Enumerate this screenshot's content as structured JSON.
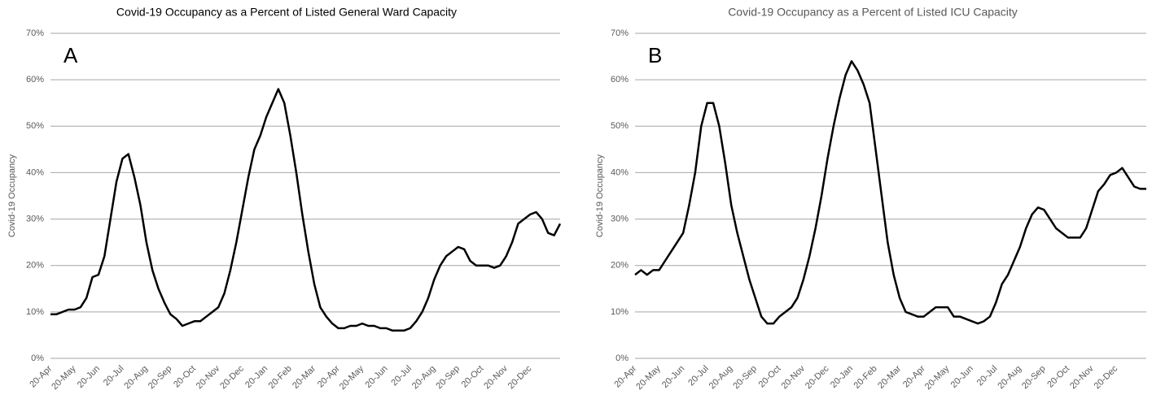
{
  "chart_data": [
    {
      "type": "line",
      "title": "Covid-19 Occupancy as a Percent of Listed General Ward Capacity",
      "panel": "A",
      "y_label": "Covid-19 Occupancy",
      "categories": [
        "20-Apr",
        null,
        null,
        null,
        "20-May",
        null,
        null,
        null,
        "20-Jun",
        null,
        null,
        null,
        "20-Jul",
        null,
        null,
        null,
        "20-Aug",
        null,
        null,
        null,
        "20-Sep",
        null,
        null,
        null,
        "20-Oct",
        null,
        null,
        null,
        "20-Nov",
        null,
        null,
        null,
        "20-Dec",
        null,
        null,
        null,
        "20-Jan",
        null,
        null,
        null,
        "20-Feb",
        null,
        null,
        null,
        "20-Mar",
        null,
        null,
        null,
        "20-Apr",
        null,
        null,
        null,
        "20-May",
        null,
        null,
        null,
        "20-Jun",
        null,
        null,
        null,
        "20-Jul",
        null,
        null,
        null,
        "20-Aug",
        null,
        null,
        null,
        "20-Sep",
        null,
        null,
        null,
        "20-Oct",
        null,
        null,
        null,
        "20-Nov",
        null,
        null,
        null,
        "20-Dec",
        null,
        null,
        null,
        null,
        null
      ],
      "values": [
        9.5,
        9.5,
        10,
        10.5,
        10.5,
        11,
        13,
        17.5,
        18,
        22,
        30,
        38,
        43,
        44,
        39,
        33,
        25,
        19,
        15,
        12,
        9.5,
        8.5,
        7,
        7.5,
        8,
        8,
        9,
        10,
        11,
        14,
        19,
        25,
        32,
        39,
        45,
        48,
        52,
        55,
        58,
        55,
        48,
        40,
        31,
        23,
        16,
        11,
        9,
        7.5,
        6.5,
        6.5,
        7,
        7,
        7.5,
        7,
        7,
        6.5,
        6.5,
        6,
        6,
        6,
        6.5,
        8,
        10,
        13,
        17,
        20,
        22,
        23,
        24,
        23.5,
        21,
        20,
        20,
        20,
        19.5,
        20,
        22,
        25,
        29,
        30,
        31,
        31.5,
        30,
        27,
        26.5,
        29
      ],
      "color": "#000000",
      "ylim": [
        0,
        70
      ],
      "yticks": [
        {
          "value": 0,
          "label": "0%"
        },
        {
          "value": 10,
          "label": "10%"
        },
        {
          "value": 20,
          "label": "20%"
        },
        {
          "value": 30,
          "label": "30%"
        },
        {
          "value": 40,
          "label": "40%"
        },
        {
          "value": 50,
          "label": "50%"
        },
        {
          "value": 60,
          "label": "60%"
        },
        {
          "value": 70,
          "label": "70%"
        }
      ],
      "grid": true
    },
    {
      "type": "line",
      "title": "Covid-19 Occupancy as a Percent of Listed ICU Capacity",
      "panel": "B",
      "y_label": "Covid-19 Occupancy",
      "categories": [
        "20-Apr",
        null,
        null,
        null,
        "20-May",
        null,
        null,
        null,
        "20-Jun",
        null,
        null,
        null,
        "20-Jul",
        null,
        null,
        null,
        "20-Aug",
        null,
        null,
        null,
        "20-Sep",
        null,
        null,
        null,
        "20-Oct",
        null,
        null,
        null,
        "20-Nov",
        null,
        null,
        null,
        "20-Dec",
        null,
        null,
        null,
        "20-Jan",
        null,
        null,
        null,
        "20-Feb",
        null,
        null,
        null,
        "20-Mar",
        null,
        null,
        null,
        "20-Apr",
        null,
        null,
        null,
        "20-May",
        null,
        null,
        null,
        "20-Jun",
        null,
        null,
        null,
        "20-Jul",
        null,
        null,
        null,
        "20-Aug",
        null,
        null,
        null,
        "20-Sep",
        null,
        null,
        null,
        "20-Oct",
        null,
        null,
        null,
        "20-Nov",
        null,
        null,
        null,
        "20-Dec",
        null,
        null,
        null,
        null,
        null
      ],
      "values": [
        18,
        19,
        18,
        19,
        19,
        21,
        23,
        25,
        27,
        33,
        40,
        50,
        55,
        55,
        50,
        42,
        33,
        27,
        22,
        17,
        13,
        9,
        7.5,
        7.5,
        9,
        10,
        11,
        13,
        17,
        22,
        28,
        35,
        43,
        50,
        56,
        61,
        64,
        62,
        59,
        55,
        45,
        35,
        25,
        18,
        13,
        10,
        9.5,
        9,
        9,
        10,
        11,
        11,
        11,
        9,
        9,
        8.5,
        8,
        7.5,
        8,
        9,
        12,
        16,
        18,
        21,
        24,
        28,
        31,
        32.5,
        32,
        30,
        28,
        27,
        26,
        26,
        26,
        28,
        32,
        36,
        37.5,
        39.5,
        40,
        41,
        39,
        37,
        36.5,
        36.5
      ],
      "color": "#000000",
      "ylim": [
        0,
        70
      ],
      "yticks": [
        {
          "value": 0,
          "label": "0%"
        },
        {
          "value": 10,
          "label": "10%"
        },
        {
          "value": 20,
          "label": "20%"
        },
        {
          "value": 30,
          "label": "30%"
        },
        {
          "value": 40,
          "label": "40%"
        },
        {
          "value": 50,
          "label": "50%"
        },
        {
          "value": 60,
          "label": "60%"
        },
        {
          "value": 70,
          "label": "70%"
        }
      ],
      "grid": true
    }
  ]
}
